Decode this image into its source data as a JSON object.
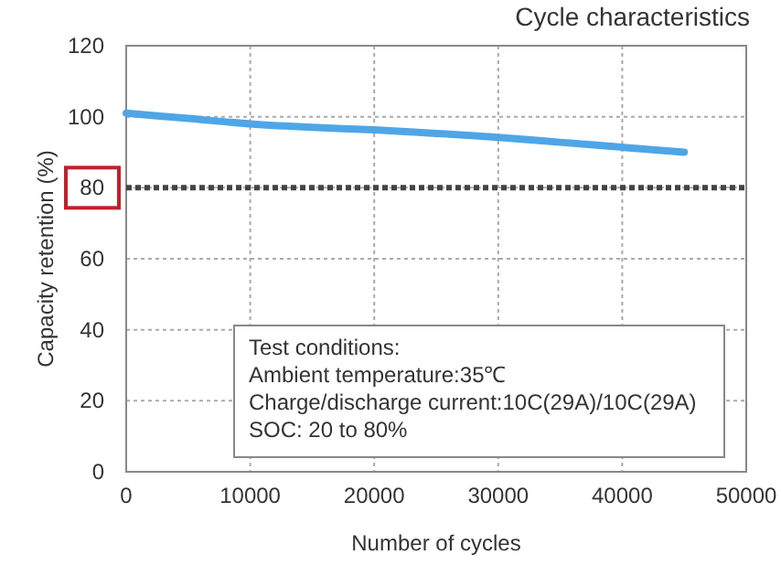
{
  "chart_data": {
    "type": "line",
    "title": "Cycle characteristics",
    "xlabel": "Number of cycles",
    "ylabel": "Capacity retention (%)",
    "x": [
      0,
      5000,
      10000,
      15000,
      20000,
      25000,
      30000,
      35000,
      40000,
      45000
    ],
    "series": [
      {
        "color": "#4ea6e6",
        "values": [
          101,
          99.5,
          98,
          97,
          96.3,
          95.3,
          94.2,
          92.8,
          91.4,
          90
        ]
      }
    ],
    "xlim": [
      0,
      50000
    ],
    "xticks": [
      0,
      10000,
      20000,
      30000,
      40000,
      50000
    ],
    "ylim": [
      0,
      120
    ],
    "yticks": [
      0,
      20,
      40,
      60,
      80,
      100,
      120
    ],
    "grid": true,
    "ref_lines": [
      {
        "axis": "y",
        "value": 80,
        "color": "#444444",
        "line_style": "dotted"
      }
    ],
    "annotations": [
      "Test conditions:",
      "Ambient temperature:35℃",
      "Charge/discharge current:10C(29A)/10C(29A)",
      "SOC: 20 to 80%"
    ]
  }
}
